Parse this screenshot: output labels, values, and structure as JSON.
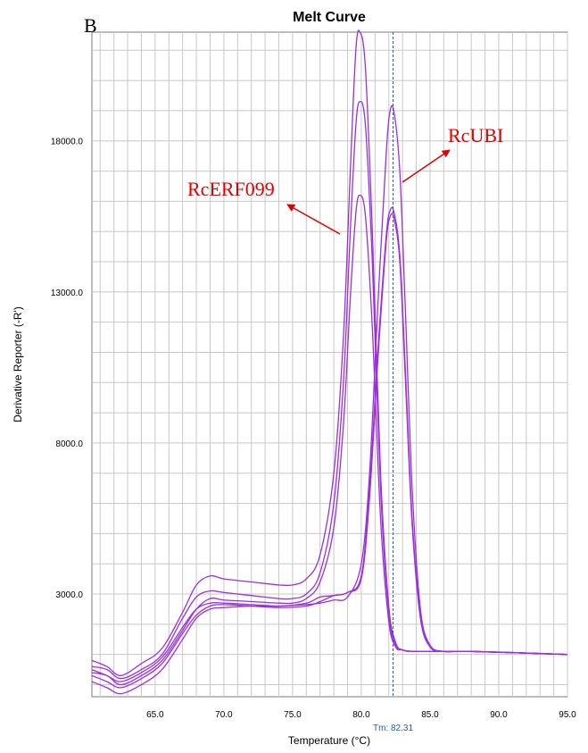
{
  "panel_label": "B",
  "colors": {
    "curve": "#9b30d9",
    "grid": "#c8c8c8",
    "threshold": "#1f5fa0",
    "annotation": "#e00000"
  },
  "chart_data": {
    "type": "line",
    "title": "Melt Curve",
    "xlabel": "Temperature (°C)",
    "ylabel": "Derivative Reporter (-R')",
    "xlim": [
      60.4,
      95.0
    ],
    "ylim": [
      -400,
      21600
    ],
    "x_ticks": [
      65.0,
      70.0,
      75.0,
      80.0,
      85.0,
      90.0,
      95.0
    ],
    "x_tick_labels": [
      "65.0",
      "70.0",
      "75.0",
      "80.0",
      "85.0",
      "90.0",
      "95.0"
    ],
    "y_ticks": [
      3000.0,
      8000.0,
      13000.0,
      18000.0
    ],
    "y_tick_labels": [
      "3000.0",
      "8000.0",
      "13000.0",
      "18000.0"
    ],
    "grid": true,
    "threshold": {
      "x": 82.31,
      "label": "Tm: 82.31"
    },
    "series": [
      {
        "x": [
          60.4,
          61.5,
          62.5,
          64,
          65.5,
          67,
          68,
          69,
          70,
          72,
          74,
          75,
          76,
          77,
          78,
          78.7,
          79.2,
          79.6,
          79.9,
          80.3,
          80.8,
          81.4,
          82,
          82.5,
          83,
          84,
          88,
          95
        ],
        "y": [
          800,
          600,
          300,
          700,
          1200,
          2400,
          3300,
          3600,
          3500,
          3400,
          3300,
          3300,
          3500,
          4300,
          7000,
          11500,
          17000,
          21000,
          21600,
          20400,
          15000,
          7000,
          2600,
          1400,
          1150,
          1100,
          1100,
          1000
        ]
      },
      {
        "x": [
          60.4,
          61.5,
          62.5,
          64,
          65.5,
          67,
          68,
          69,
          70,
          72,
          74,
          75,
          76,
          77,
          78,
          78.7,
          79.2,
          79.6,
          79.9,
          80.3,
          80.8,
          81.4,
          82,
          82.5,
          83,
          84,
          88,
          95
        ],
        "y": [
          600,
          500,
          200,
          500,
          1000,
          2200,
          2900,
          3100,
          3050,
          2950,
          2850,
          2850,
          3000,
          3700,
          6000,
          10000,
          15000,
          18500,
          19300,
          18500,
          14000,
          6500,
          2400,
          1300,
          1150,
          1100,
          1100,
          1000
        ]
      },
      {
        "x": [
          60.4,
          61.5,
          62.5,
          64,
          65.5,
          67,
          68,
          69,
          70,
          72,
          74,
          75,
          76,
          77,
          78,
          78.7,
          79.2,
          79.6,
          79.9,
          80.3,
          80.8,
          81.4,
          82,
          82.5,
          83,
          84,
          88,
          95
        ],
        "y": [
          400,
          300,
          0,
          300,
          800,
          1800,
          2500,
          2850,
          2800,
          2750,
          2700,
          2700,
          2850,
          3400,
          5200,
          8600,
          12800,
          15600,
          16200,
          15500,
          11800,
          5500,
          2100,
          1250,
          1150,
          1100,
          1100,
          1000
        ]
      },
      {
        "x": [
          60.4,
          61.5,
          62.5,
          64,
          65.5,
          67,
          68,
          69,
          70,
          72,
          74,
          76,
          77,
          78,
          79,
          80,
          80.6,
          81.2,
          81.8,
          82.1,
          82.4,
          82.8,
          83.2,
          83.7,
          84.3,
          85,
          86,
          88,
          95
        ],
        "y": [
          500,
          300,
          100,
          400,
          900,
          1900,
          2500,
          2700,
          2700,
          2650,
          2600,
          2650,
          2700,
          2800,
          2900,
          4000,
          7000,
          12500,
          17500,
          19000,
          18900,
          17000,
          12500,
          6500,
          2500,
          1300,
          1100,
          1100,
          1000
        ]
      },
      {
        "x": [
          60.4,
          61.5,
          62.5,
          64,
          65.5,
          67,
          68,
          69,
          70,
          72,
          74,
          76,
          77,
          78,
          79,
          80,
          80.6,
          81.2,
          81.8,
          82.1,
          82.4,
          82.8,
          83.2,
          83.7,
          84.3,
          85,
          86,
          88,
          95
        ],
        "y": [
          300,
          100,
          -100,
          200,
          700,
          1700,
          2300,
          2600,
          2650,
          2600,
          2550,
          2600,
          2750,
          2950,
          3050,
          3600,
          6500,
          11000,
          14800,
          15700,
          15600,
          14200,
          10500,
          5500,
          2300,
          1300,
          1100,
          1100,
          1000
        ]
      },
      {
        "x": [
          60.4,
          61.5,
          62.5,
          64,
          65.5,
          67,
          68,
          69,
          70,
          72,
          74,
          76,
          77,
          78,
          79,
          80,
          80.6,
          81.2,
          81.8,
          82.1,
          82.4,
          82.8,
          83.2,
          83.7,
          84.3,
          85,
          86,
          88,
          95
        ],
        "y": [
          100,
          -100,
          -300,
          0,
          500,
          1500,
          2200,
          2500,
          2550,
          2600,
          2600,
          2700,
          2900,
          2950,
          3050,
          3500,
          6200,
          10700,
          14600,
          15500,
          15400,
          14000,
          10200,
          5300,
          2200,
          1250,
          1100,
          1100,
          1000
        ]
      }
    ],
    "annotations": [
      {
        "text": "RcERF099"
      },
      {
        "text": "RcUBI"
      }
    ]
  }
}
